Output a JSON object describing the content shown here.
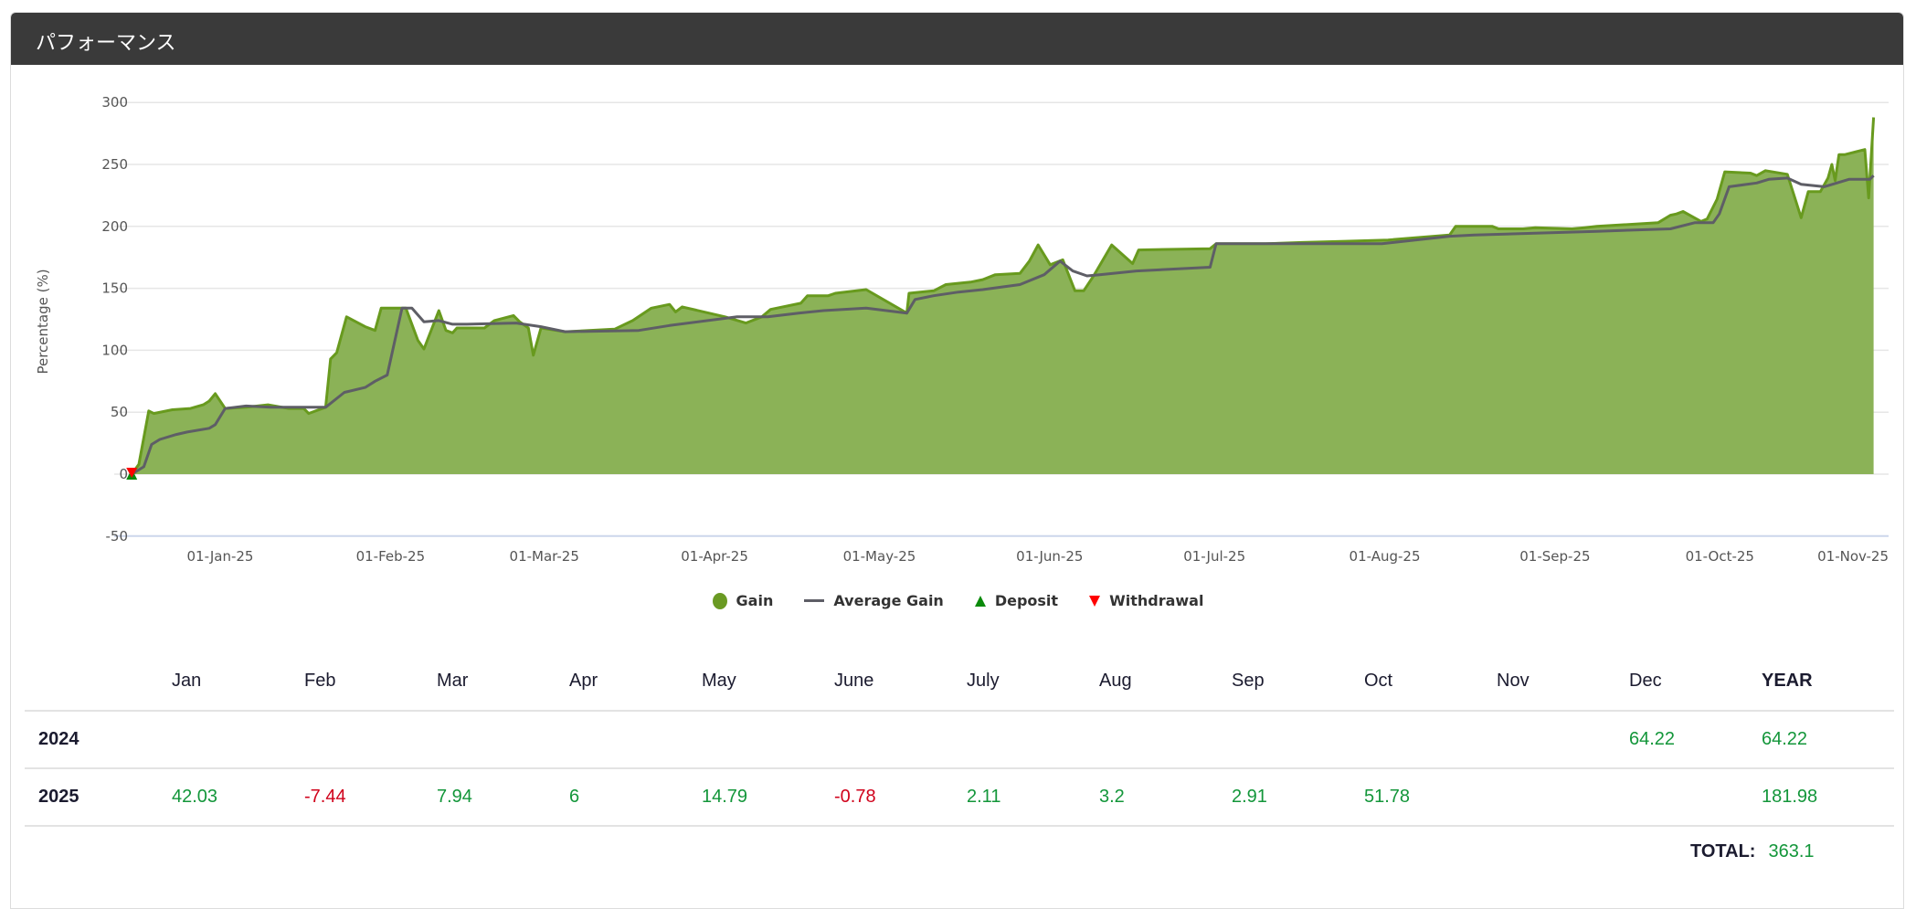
{
  "panel": {
    "title": "パフォーマンス"
  },
  "colors": {
    "gain_fill": "#8bb257",
    "gain_stroke": "#689a1e",
    "avg": "#5e5e66",
    "deposit": "#0a8a0a",
    "withdrawal": "#ff0000",
    "positive": "#13963a",
    "negative": "#d0021b"
  },
  "chart_data": {
    "type": "area",
    "title": "",
    "ylabel": "Percentage (%)",
    "xlabel": "",
    "x_unit": "days since 2025-01-01",
    "ylim": [
      -50,
      300
    ],
    "yticks": [
      300,
      250,
      200,
      150,
      100,
      50,
      0,
      -50
    ],
    "xlim": [
      -17,
      305
    ],
    "xticks": [
      {
        "day": 0,
        "label": "01-Jan-25"
      },
      {
        "day": 31,
        "label": "01-Feb-25"
      },
      {
        "day": 59,
        "label": "01-Mar-25"
      },
      {
        "day": 90,
        "label": "01-Apr-25"
      },
      {
        "day": 120,
        "label": "01-May-25"
      },
      {
        "day": 151,
        "label": "01-Jun-25"
      },
      {
        "day": 181,
        "label": "01-Jul-25"
      },
      {
        "day": 212,
        "label": "01-Aug-25"
      },
      {
        "day": 243,
        "label": "01-Sep-25"
      },
      {
        "day": 273,
        "label": "01-Oct-25"
      },
      {
        "day": 304,
        "label": "01-Nov-25"
      }
    ],
    "grid": true,
    "legend_position": "bottom",
    "legend": [
      "Gain",
      "Average Gain",
      "Deposit",
      "Withdrawal"
    ],
    "series": [
      {
        "name": "Gain",
        "type": "area",
        "points": [
          [
            -16.1,
            0
          ],
          [
            -14.8,
            8
          ],
          [
            -13.0,
            51
          ],
          [
            -12.1,
            49
          ],
          [
            -8.7,
            52
          ],
          [
            -5.4,
            53
          ],
          [
            -3.1,
            56
          ],
          [
            -2.0,
            59
          ],
          [
            -0.9,
            65
          ],
          [
            0.9,
            53
          ],
          [
            4.7,
            54
          ],
          [
            8.7,
            56
          ],
          [
            12.5,
            53
          ],
          [
            15.2,
            53
          ],
          [
            16.1,
            49
          ],
          [
            19.2,
            54
          ],
          [
            20.1,
            93
          ],
          [
            21.2,
            98
          ],
          [
            23.0,
            127
          ],
          [
            26.4,
            119
          ],
          [
            28.2,
            116
          ],
          [
            29.3,
            134
          ],
          [
            33.8,
            134
          ],
          [
            36.0,
            108
          ],
          [
            37.1,
            101
          ],
          [
            39.8,
            132
          ],
          [
            41.1,
            116
          ],
          [
            42.3,
            114
          ],
          [
            43.1,
            118
          ],
          [
            48.1,
            118
          ],
          [
            49.9,
            124
          ],
          [
            53.4,
            128
          ],
          [
            54.5,
            123
          ],
          [
            56.1,
            118
          ],
          [
            57.0,
            96
          ],
          [
            58.4,
            118
          ],
          [
            62.8,
            115
          ],
          [
            71.8,
            117
          ],
          [
            75.1,
            124
          ],
          [
            78.5,
            134
          ],
          [
            81.8,
            137
          ],
          [
            82.9,
            131
          ],
          [
            84.1,
            135
          ],
          [
            91.9,
            127
          ],
          [
            95.7,
            122
          ],
          [
            98.6,
            127
          ],
          [
            100.2,
            133
          ],
          [
            105.7,
            138
          ],
          [
            106.9,
            144
          ],
          [
            110.7,
            144
          ],
          [
            112.0,
            146
          ],
          [
            117.6,
            149
          ],
          [
            125.0,
            130
          ],
          [
            125.4,
            146
          ],
          [
            129.9,
            148
          ],
          [
            132.1,
            153
          ],
          [
            136.6,
            155
          ],
          [
            138.8,
            157
          ],
          [
            141.1,
            161
          ],
          [
            145.6,
            162
          ],
          [
            147.3,
            172
          ],
          [
            148.9,
            185
          ],
          [
            151.1,
            169
          ],
          [
            153.4,
            173
          ],
          [
            155.6,
            148
          ],
          [
            157.2,
            148
          ],
          [
            159.0,
            160
          ],
          [
            162.3,
            185
          ],
          [
            166.1,
            170
          ],
          [
            167.2,
            181
          ],
          [
            180.2,
            182
          ],
          [
            181.3,
            186
          ],
          [
            190.3,
            186
          ],
          [
            197.0,
            187
          ],
          [
            204.8,
            188
          ],
          [
            212.6,
            189
          ],
          [
            223.8,
            193
          ],
          [
            224.9,
            200
          ],
          [
            231.6,
            200
          ],
          [
            232.7,
            198
          ],
          [
            237.2,
            198
          ],
          [
            239.4,
            199
          ],
          [
            246.1,
            198
          ],
          [
            248.4,
            199
          ],
          [
            250.6,
            200
          ],
          [
            261.8,
            203
          ],
          [
            264.0,
            209
          ],
          [
            265.1,
            210
          ],
          [
            266.3,
            212
          ],
          [
            269.6,
            204
          ],
          [
            270.7,
            206
          ],
          [
            272.5,
            222
          ],
          [
            273.9,
            244
          ],
          [
            278.6,
            243
          ],
          [
            279.7,
            241
          ],
          [
            281.3,
            245
          ],
          [
            285.3,
            242
          ],
          [
            287.8,
            207
          ],
          [
            289.1,
            228
          ],
          [
            291.3,
            228
          ],
          [
            292.7,
            239
          ],
          [
            293.4,
            250
          ],
          [
            294.0,
            237
          ],
          [
            294.7,
            258
          ],
          [
            295.8,
            258
          ],
          [
            299.4,
            262
          ],
          [
            300.1,
            223
          ],
          [
            301.0,
            288
          ]
        ]
      },
      {
        "name": "Average Gain",
        "type": "line",
        "points": [
          [
            -16.1,
            0
          ],
          [
            -13.9,
            6
          ],
          [
            -12.5,
            24
          ],
          [
            -11.0,
            28
          ],
          [
            -8.0,
            32
          ],
          [
            -6.0,
            34
          ],
          [
            -2.0,
            37
          ],
          [
            -0.9,
            40
          ],
          [
            0.9,
            53
          ],
          [
            4.7,
            55
          ],
          [
            9.2,
            54
          ],
          [
            19.2,
            54
          ],
          [
            22.6,
            66
          ],
          [
            26.4,
            70
          ],
          [
            28.2,
            75
          ],
          [
            30.4,
            80
          ],
          [
            33.1,
            134
          ],
          [
            34.9,
            134
          ],
          [
            37.1,
            123
          ],
          [
            39.8,
            124
          ],
          [
            42.3,
            121
          ],
          [
            44.9,
            121
          ],
          [
            53.9,
            122
          ],
          [
            58.4,
            119
          ],
          [
            62.8,
            115
          ],
          [
            76.2,
            116
          ],
          [
            81.8,
            120
          ],
          [
            94.1,
            127
          ],
          [
            99.7,
            127
          ],
          [
            105.3,
            130
          ],
          [
            109.8,
            132
          ],
          [
            117.6,
            134
          ],
          [
            125.0,
            130
          ],
          [
            126.5,
            141
          ],
          [
            129.9,
            144
          ],
          [
            134.4,
            147
          ],
          [
            138.8,
            149
          ],
          [
            145.6,
            153
          ],
          [
            150.0,
            161
          ],
          [
            152.9,
            172
          ],
          [
            155.2,
            164
          ],
          [
            157.8,
            160
          ],
          [
            160.1,
            161
          ],
          [
            166.8,
            164
          ],
          [
            180.2,
            167
          ],
          [
            181.3,
            186
          ],
          [
            190.3,
            186
          ],
          [
            211.5,
            186
          ],
          [
            223.8,
            192
          ],
          [
            228.3,
            193
          ],
          [
            250.6,
            196
          ],
          [
            264.0,
            198
          ],
          [
            268.5,
            203
          ],
          [
            271.8,
            203
          ],
          [
            272.9,
            210
          ],
          [
            274.7,
            232
          ],
          [
            279.7,
            235
          ],
          [
            281.9,
            238
          ],
          [
            285.3,
            239
          ],
          [
            287.8,
            234
          ],
          [
            292.0,
            232
          ],
          [
            294.3,
            235
          ],
          [
            296.5,
            238
          ],
          [
            300.3,
            238
          ],
          [
            301.0,
            241
          ]
        ]
      },
      {
        "name": "Deposit",
        "type": "marker",
        "points": [
          [
            -16.1,
            0
          ]
        ]
      },
      {
        "name": "Withdrawal",
        "type": "marker",
        "points": [
          [
            -16.1,
            0
          ]
        ]
      }
    ]
  },
  "table": {
    "headers": [
      "",
      "Jan",
      "Feb",
      "Mar",
      "Apr",
      "May",
      "June",
      "July",
      "Aug",
      "Sep",
      "Oct",
      "Nov",
      "Dec",
      "YEAR"
    ],
    "rows": [
      {
        "year": "2024",
        "values": [
          "",
          "",
          "",
          "",
          "",
          "",
          "",
          "",
          "",
          "",
          "",
          "64.22"
        ],
        "total": "64.22"
      },
      {
        "year": "2025",
        "values": [
          "42.03",
          "-7.44",
          "7.94",
          "6",
          "14.79",
          "-0.78",
          "2.11",
          "3.2",
          "2.91",
          "51.78",
          "",
          ""
        ],
        "total": "181.98"
      }
    ],
    "total_label": "TOTAL:",
    "total_value": "363.1"
  }
}
